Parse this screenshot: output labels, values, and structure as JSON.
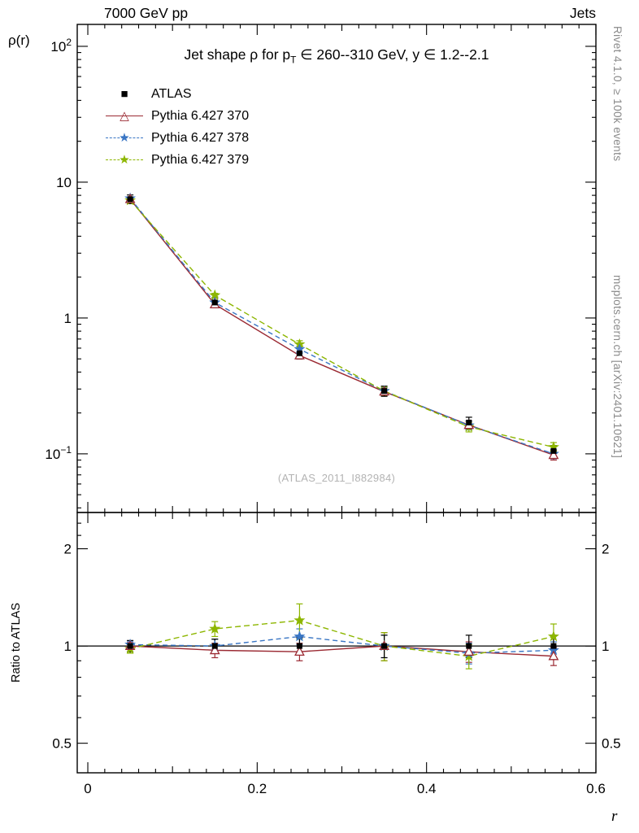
{
  "header": {
    "left": "7000 GeV pp",
    "right": "Jets"
  },
  "margin_labels": {
    "rivet": "Rivet 4.1.0, ≥ 100k events",
    "mcplots": "mcplots.cern.ch [arXiv:2401.10621]"
  },
  "chart_data": {
    "type": "line",
    "title": "Jet shape ρ for p_T ∈ 260--310 GeV, y ∈ 1.2--2.1",
    "title_parts": {
      "pre": "Jet shape ρ for p",
      "sub": "T",
      "post": " ∈ 260--310 GeV, y ∈ 1.2--2.1"
    },
    "watermark": "(ATLAS_2011_I882984)",
    "xlabel": "r",
    "ylabel": "ρ(r)",
    "ratio_ylabel": "Ratio to ATLAS",
    "yscale": "log",
    "xlim": [
      -0.0125,
      0.6
    ],
    "ylim_main": [
      0.037,
      145
    ],
    "ylim_ratio": [
      0.405,
      2.59
    ],
    "x": [
      0.05,
      0.15,
      0.25,
      0.35,
      0.45,
      0.55
    ],
    "xticks": {
      "values": [
        0,
        0.2,
        0.4,
        0.6
      ],
      "labels": [
        "0",
        "0.2",
        "0.4",
        "0.6"
      ]
    },
    "yticks_main": [
      {
        "v": 100,
        "base": "10",
        "exp": "2"
      },
      {
        "v": 10,
        "base": "10",
        "exp": ""
      },
      {
        "v": 1,
        "base": "1",
        "exp": ""
      },
      {
        "v": 0.1,
        "base": "10",
        "exp": "−1"
      }
    ],
    "yticks_ratio": {
      "values": [
        0.5,
        1,
        2
      ],
      "labels": [
        "0.5",
        "1",
        "2"
      ]
    },
    "ratio_minor_ticks": [
      0.6,
      0.7,
      0.8,
      0.9,
      2.2,
      2.4
    ],
    "series": [
      {
        "name": "ATLAS",
        "color": "#000000",
        "marker": "square",
        "line": "none",
        "dash": "",
        "values": [
          7.5,
          1.3,
          0.55,
          0.29,
          0.17,
          0.105
        ],
        "errors": [
          0.55,
          0.1,
          0.05,
          0.025,
          0.016,
          0.01
        ],
        "ratio": [
          1,
          1,
          1,
          1,
          1,
          1
        ],
        "ratio_errors": [
          0.04,
          0.05,
          0.06,
          0.08,
          0.08,
          0.08
        ]
      },
      {
        "name": "Pythia 6.427 370",
        "color": "#9B2A33",
        "marker": "triangle-open",
        "line": "solid",
        "dash": "",
        "values": [
          7.5,
          1.26,
          0.53,
          0.287,
          0.163,
          0.098
        ],
        "errors": [
          0.15,
          0.04,
          0.03,
          0.018,
          0.012,
          0.008
        ],
        "ratio": [
          1.0,
          0.97,
          0.96,
          1.0,
          0.96,
          0.93
        ],
        "ratio_errors": [
          0.025,
          0.05,
          0.06,
          0.1,
          0.07,
          0.06
        ]
      },
      {
        "name": "Pythia 6.427 378",
        "color": "#3A76C4",
        "marker": "star",
        "line": "dashed",
        "dash": "6,4",
        "values": [
          7.6,
          1.3,
          0.59,
          0.29,
          0.162,
          0.1
        ],
        "errors": [
          0.15,
          0.04,
          0.03,
          0.018,
          0.012,
          0.008
        ],
        "ratio": [
          1.01,
          1.0,
          1.07,
          1.0,
          0.95,
          0.97
        ],
        "ratio_errors": [
          0.025,
          0.05,
          0.06,
          0.08,
          0.07,
          0.06
        ]
      },
      {
        "name": "Pythia 6.427 379",
        "color": "#8DB600",
        "marker": "star",
        "line": "dashed",
        "dash": "7,4",
        "values": [
          7.35,
          1.47,
          0.64,
          0.29,
          0.158,
          0.112
        ],
        "errors": [
          0.15,
          0.05,
          0.04,
          0.02,
          0.013,
          0.009
        ],
        "ratio": [
          0.98,
          1.13,
          1.2,
          1.0,
          0.93,
          1.07
        ],
        "ratio_errors": [
          0.03,
          0.06,
          0.15,
          0.1,
          0.08,
          0.1
        ]
      }
    ]
  }
}
